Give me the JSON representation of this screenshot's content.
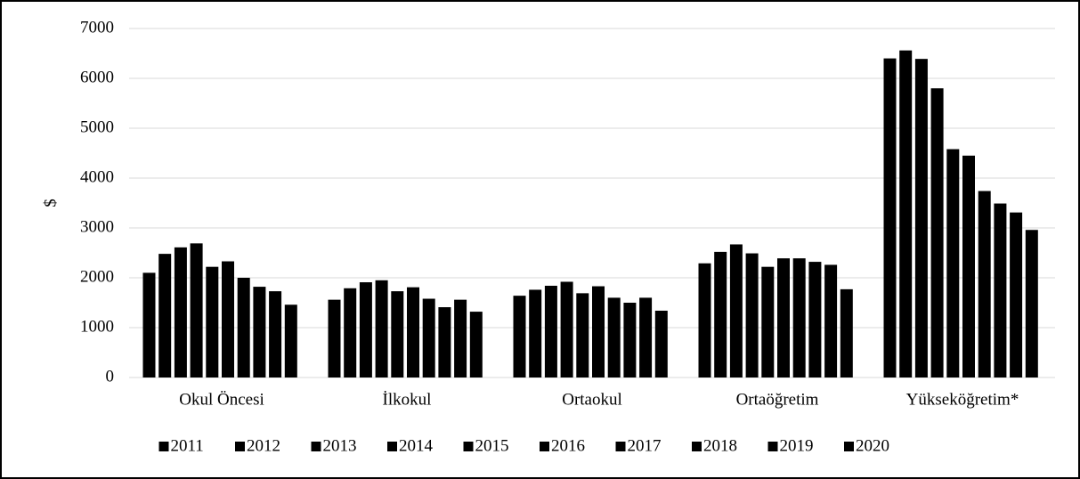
{
  "chart_data": {
    "type": "bar",
    "y_label": "$",
    "categories": [
      "Okul Öncesi",
      "İlkokul",
      "Ortaokul",
      "Ortaöğretim",
      "Yükseköğretim*"
    ],
    "series": [
      {
        "name": "2011",
        "color": "#000000",
        "values": [
          2100,
          1560,
          1640,
          2290,
          6400
        ]
      },
      {
        "name": "2012",
        "color": "#000000",
        "values": [
          2480,
          1790,
          1760,
          2520,
          6560
        ]
      },
      {
        "name": "2013",
        "color": "#000000",
        "values": [
          2610,
          1910,
          1840,
          2670,
          6390
        ]
      },
      {
        "name": "2014",
        "color": "#000000",
        "values": [
          2690,
          1950,
          1920,
          2490,
          5800
        ]
      },
      {
        "name": "2015",
        "color": "#000000",
        "values": [
          2220,
          1730,
          1690,
          2220,
          4580
        ]
      },
      {
        "name": "2016",
        "color": "#000000",
        "values": [
          2330,
          1810,
          1830,
          2390,
          4450
        ]
      },
      {
        "name": "2017",
        "color": "#000000",
        "values": [
          2000,
          1580,
          1600,
          2390,
          3740
        ]
      },
      {
        "name": "2018",
        "color": "#000000",
        "values": [
          1820,
          1410,
          1500,
          2320,
          3490
        ]
      },
      {
        "name": "2019",
        "color": "#000000",
        "values": [
          1730,
          1560,
          1600,
          2260,
          3310
        ]
      },
      {
        "name": "2020",
        "color": "#000000",
        "values": [
          1460,
          1320,
          1340,
          1770,
          2960
        ]
      }
    ],
    "ylim": [
      0,
      7000
    ],
    "yticks": [
      0,
      1000,
      2000,
      3000,
      4000,
      5000,
      6000,
      7000
    ],
    "grid": true,
    "legend": "bottom"
  }
}
